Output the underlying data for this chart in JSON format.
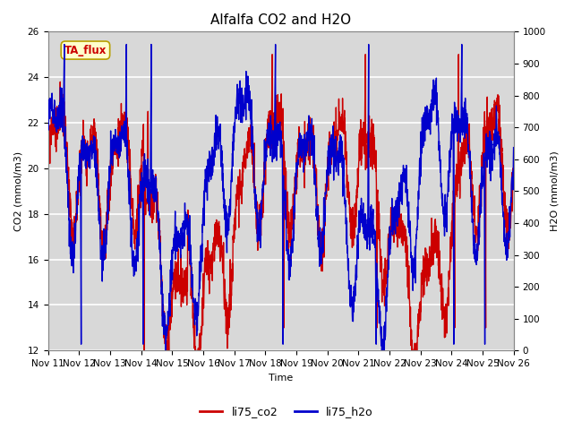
{
  "title": "Alfalfa CO2 and H2O",
  "xlabel": "Time",
  "ylabel_left": "CO2 (mmol/m3)",
  "ylabel_right": "H2O (mmol/m3)",
  "ylim_left": [
    12,
    26
  ],
  "ylim_right": [
    0,
    1000
  ],
  "yticks_left": [
    12,
    14,
    16,
    18,
    20,
    22,
    24,
    26
  ],
  "yticks_right": [
    0,
    100,
    200,
    300,
    400,
    500,
    600,
    700,
    800,
    900,
    1000
  ],
  "xticklabels": [
    "Nov 11",
    "Nov 12",
    "Nov 13",
    "Nov 14",
    "Nov 15",
    "Nov 16",
    "Nov 17",
    "Nov 18",
    "Nov 19",
    "Nov 20",
    "Nov 21",
    "Nov 22",
    "Nov 23",
    "Nov 24",
    "Nov 25",
    "Nov 26"
  ],
  "legend_labels": [
    "li75_co2",
    "li75_h2o"
  ],
  "legend_colors": [
    "#cc0000",
    "#0000cc"
  ],
  "line_co2_color": "#cc0000",
  "line_h2o_color": "#0000cc",
  "line_width": 1.0,
  "plot_bg_color": "#d8d8d8",
  "grid_color": "#ffffff",
  "annotation_text": "TA_flux",
  "annotation_bg": "#ffffcc",
  "annotation_border": "#b8a000",
  "title_fontsize": 11,
  "axis_label_fontsize": 8,
  "tick_fontsize": 7.5
}
